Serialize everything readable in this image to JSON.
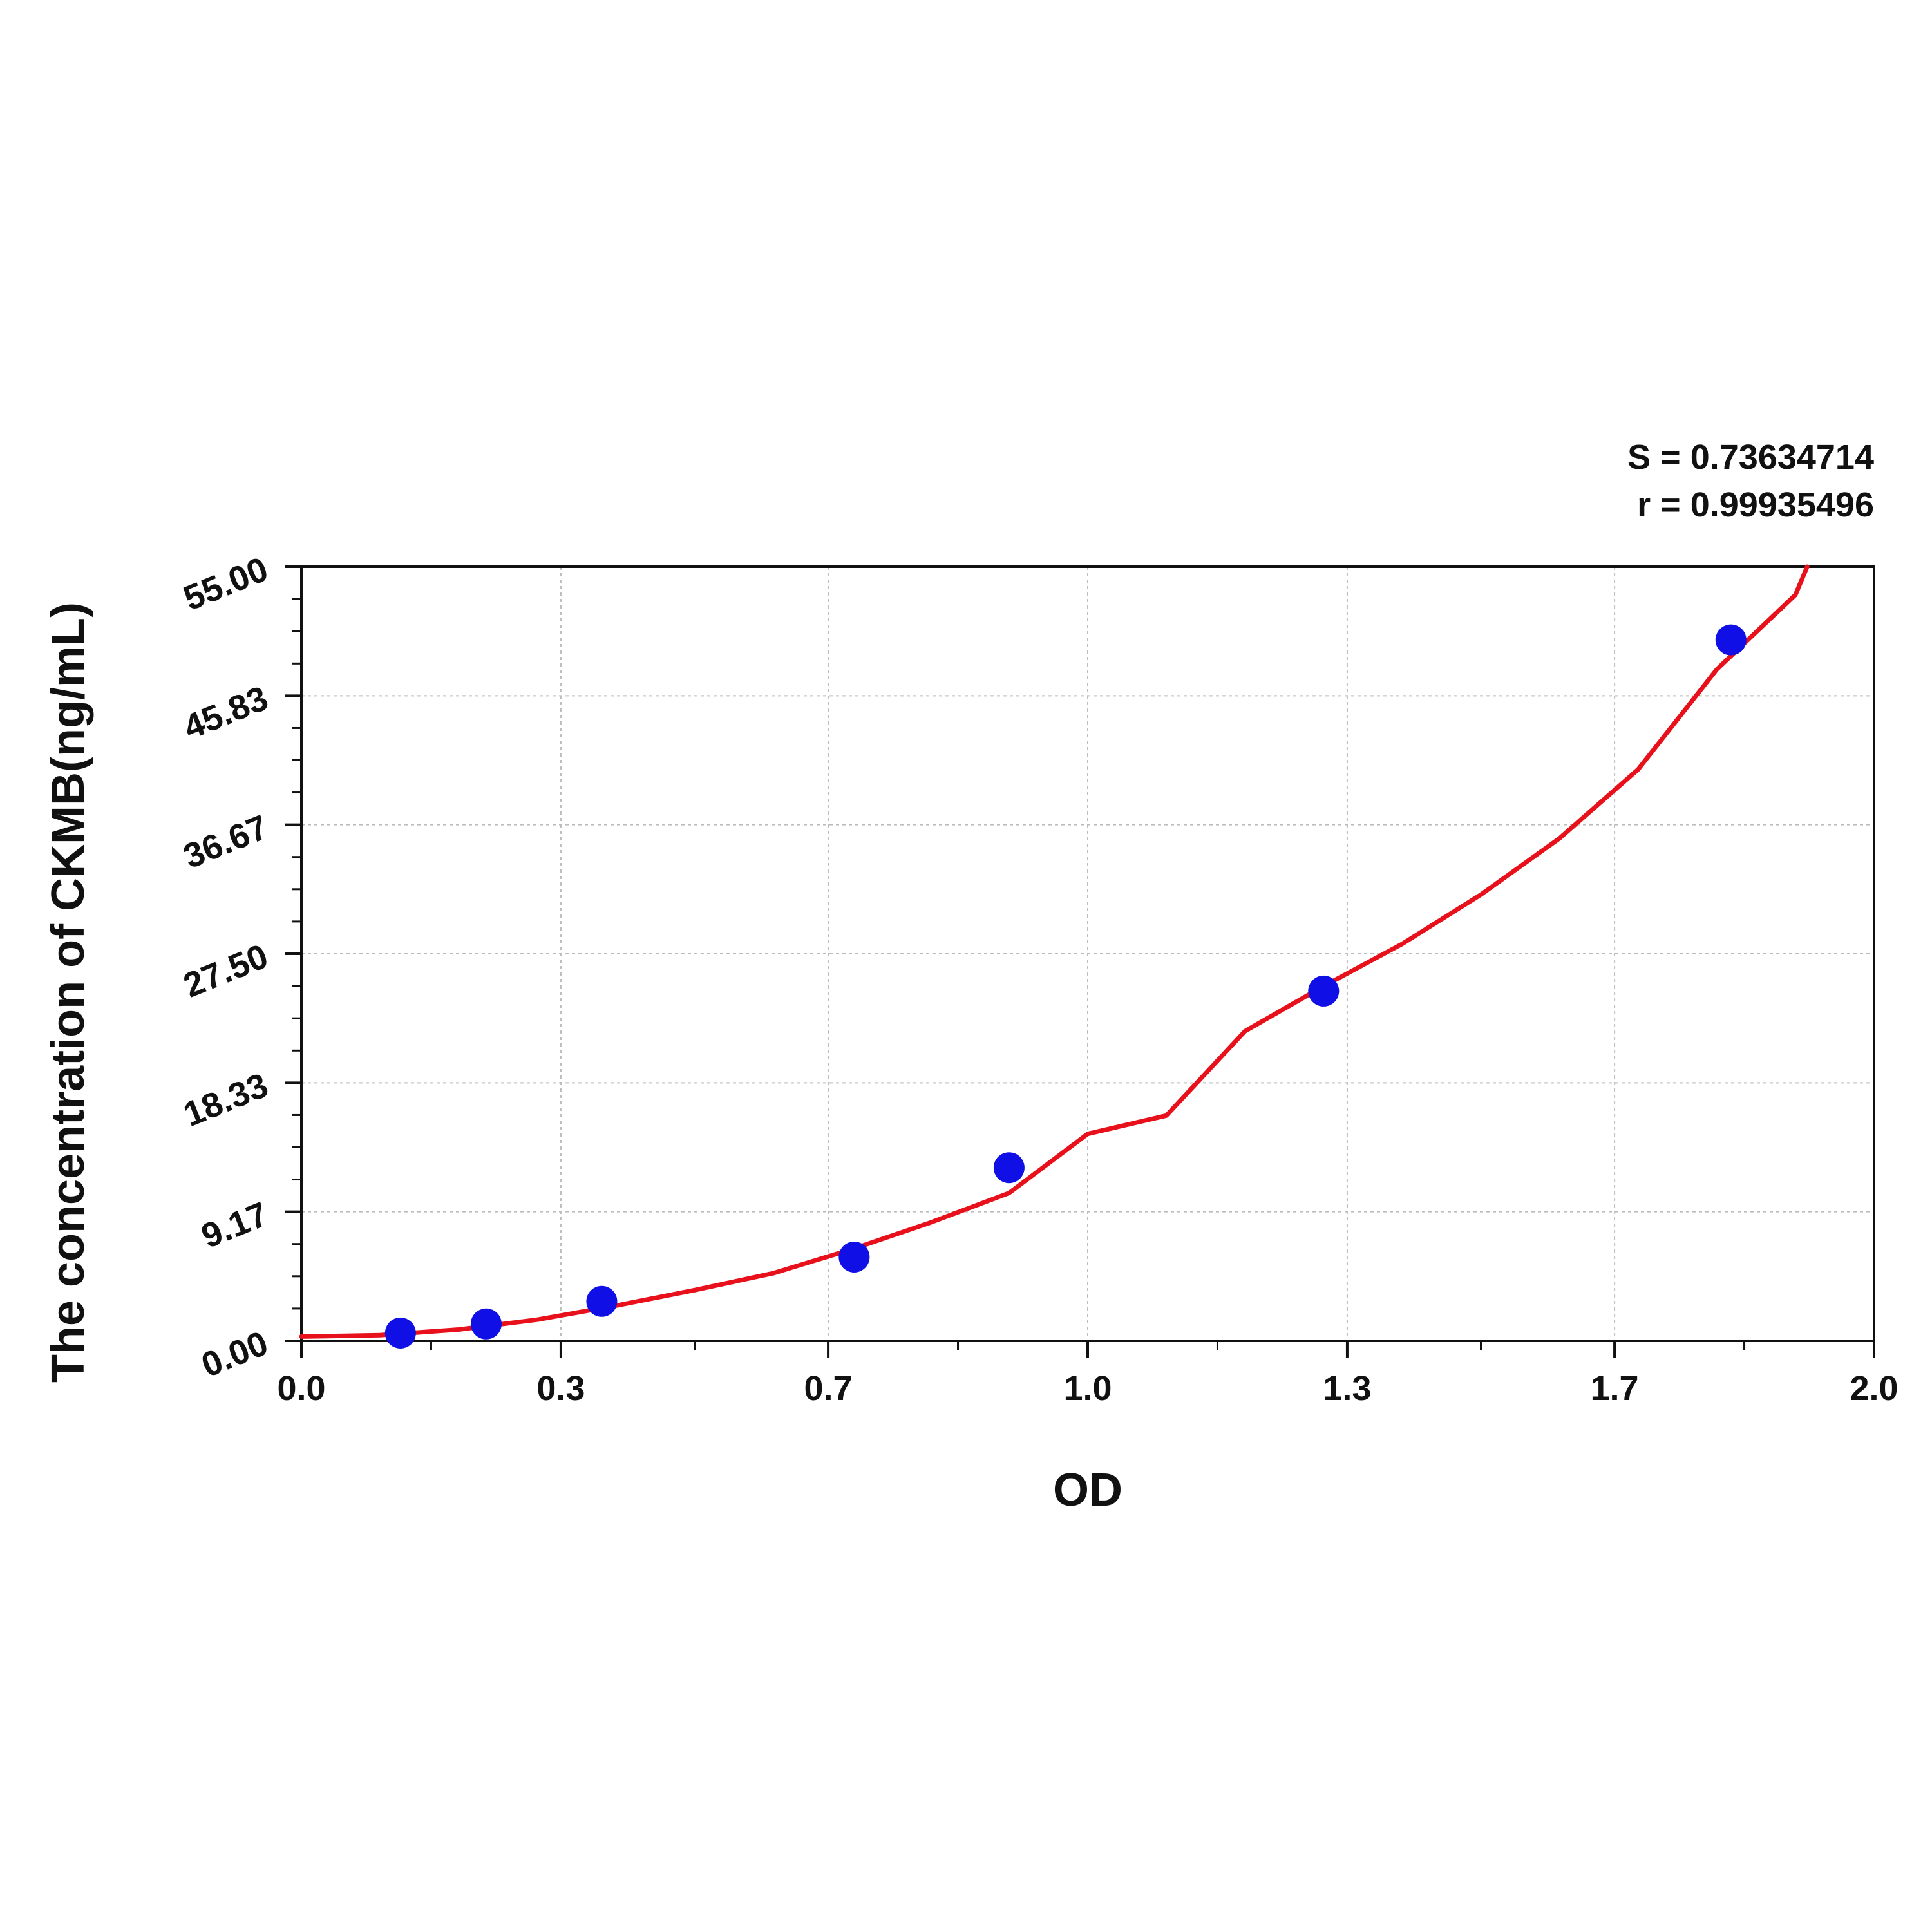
{
  "chart_data": {
    "type": "scatter",
    "xlabel": "OD",
    "ylabel": "The concentration of CKMB(ng/mL)",
    "xlim": [
      0,
      2.0
    ],
    "ylim": [
      0,
      55
    ],
    "x_ticks": [
      0.0,
      0.33,
      0.67,
      1.0,
      1.33,
      1.67,
      2.0
    ],
    "x_tick_labels": [
      "0.0",
      "0.3",
      "0.7",
      "1.0",
      "1.3",
      "1.7",
      "2.0"
    ],
    "y_ticks": [
      0,
      9.17,
      18.33,
      27.5,
      36.67,
      45.83,
      55
    ],
    "y_tick_labels": [
      "0.00",
      "9.17",
      "18.33",
      "27.50",
      "36.67",
      "45.83",
      "55.00"
    ],
    "grid": true,
    "series": [
      {
        "kind": "points",
        "color": "#1010e6",
        "x": [
          0.126,
          0.235,
          0.382,
          0.703,
          0.9,
          1.3,
          1.818
        ],
        "y": [
          0.55,
          1.2,
          2.8,
          5.95,
          12.3,
          24.85,
          49.8
        ]
      },
      {
        "kind": "fit-curve",
        "color": "#e8101a",
        "x": [
          0.0,
          0.1,
          0.2,
          0.3,
          0.4,
          0.5,
          0.6,
          0.7,
          0.8,
          0.9,
          1.0,
          1.1,
          1.2,
          1.3,
          1.4,
          1.5,
          1.6,
          1.7,
          1.8,
          1.9,
          1.915
        ],
        "y": [
          0.3,
          0.4,
          0.8,
          1.5,
          2.5,
          3.6,
          4.8,
          6.5,
          8.4,
          10.5,
          14.7,
          16.0,
          22.0,
          25.2,
          28.2,
          31.7,
          35.7,
          40.6,
          47.7,
          53.0,
          55.0
        ]
      }
    ],
    "annotations": [
      "S = 0.73634714",
      "r = 0.99935496"
    ]
  }
}
